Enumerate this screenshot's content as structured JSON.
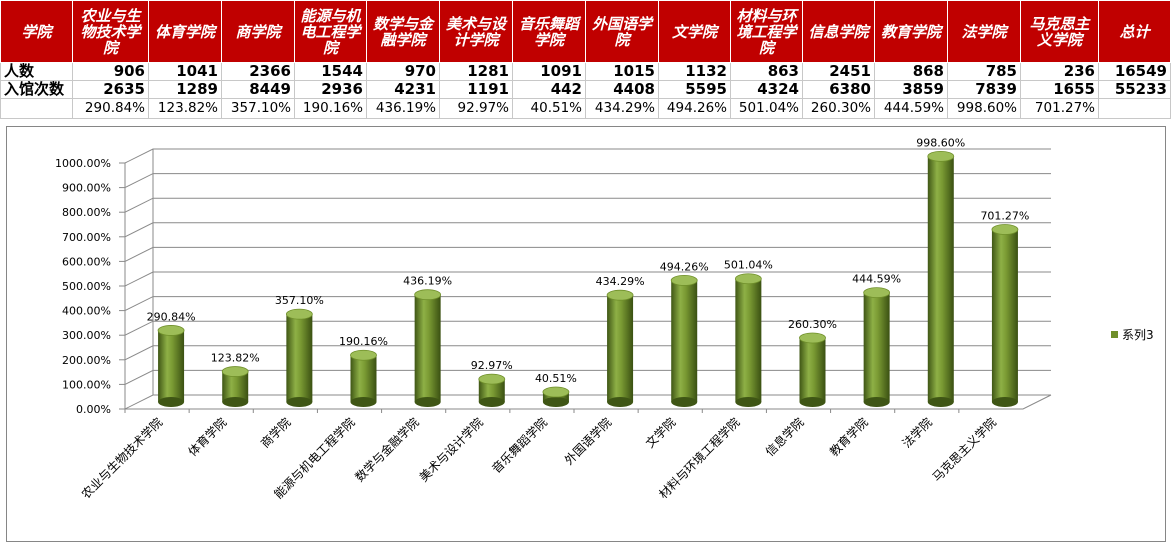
{
  "table": {
    "header_label": "学院",
    "total_label": "总计",
    "colleges": [
      "农业与生物技术学院",
      "体育学院",
      "商学院",
      "能源与机电工程学院",
      "数学与金融学院",
      "美术与设计学院",
      "音乐舞蹈学院",
      "外国语学院",
      "文学院",
      "材料与环境工程学院",
      "信息学院",
      "教育学院",
      "法学院",
      "马克思主义学院"
    ],
    "row_people_label": "人数",
    "row_visits_label": "入馆次数",
    "people": [
      "906",
      "1041",
      "2366",
      "1544",
      "970",
      "1281",
      "1091",
      "1015",
      "1132",
      "863",
      "2451",
      "868",
      "785",
      "236"
    ],
    "people_total": "16549",
    "visits": [
      "2635",
      "1289",
      "8449",
      "2936",
      "4231",
      "1191",
      "442",
      "4408",
      "5595",
      "4324",
      "6380",
      "3859",
      "7839",
      "1655"
    ],
    "visits_total": "55233",
    "ratios": [
      "290.84%",
      "123.82%",
      "357.10%",
      "190.16%",
      "436.19%",
      "92.97%",
      "40.51%",
      "434.29%",
      "494.26%",
      "501.04%",
      "260.30%",
      "444.59%",
      "998.60%",
      "701.27%"
    ]
  },
  "chart_data": {
    "type": "bar",
    "categories": [
      "农业与生物技术学院",
      "体育学院",
      "商学院",
      "能源与机电工程学院",
      "数学与金融学院",
      "美术与设计学院",
      "音乐舞蹈学院",
      "外国语学院",
      "文学院",
      "材料与环境工程学院",
      "信息学院",
      "教育学院",
      "法学院",
      "马克思主义学院"
    ],
    "series": [
      {
        "name": "系列3",
        "values": [
          290.84,
          123.82,
          357.1,
          190.16,
          436.19,
          92.97,
          40.51,
          434.29,
          494.26,
          501.04,
          260.3,
          444.59,
          998.6,
          701.27
        ]
      }
    ],
    "value_labels": [
      "290.84%",
      "123.82%",
      "357.10%",
      "190.16%",
      "436.19%",
      "92.97%",
      "40.51%",
      "434.29%",
      "494.26%",
      "501.04%",
      "260.30%",
      "444.59%",
      "998.60%",
      "701.27%"
    ],
    "yticks": [
      "0.00%",
      "100.00%",
      "200.00%",
      "300.00%",
      "400.00%",
      "500.00%",
      "600.00%",
      "700.00%",
      "800.00%",
      "900.00%",
      "1000.00%"
    ],
    "ylim": [
      0,
      1000
    ],
    "grid": true,
    "legend": "right",
    "bar_color": "#6f8f2a"
  }
}
